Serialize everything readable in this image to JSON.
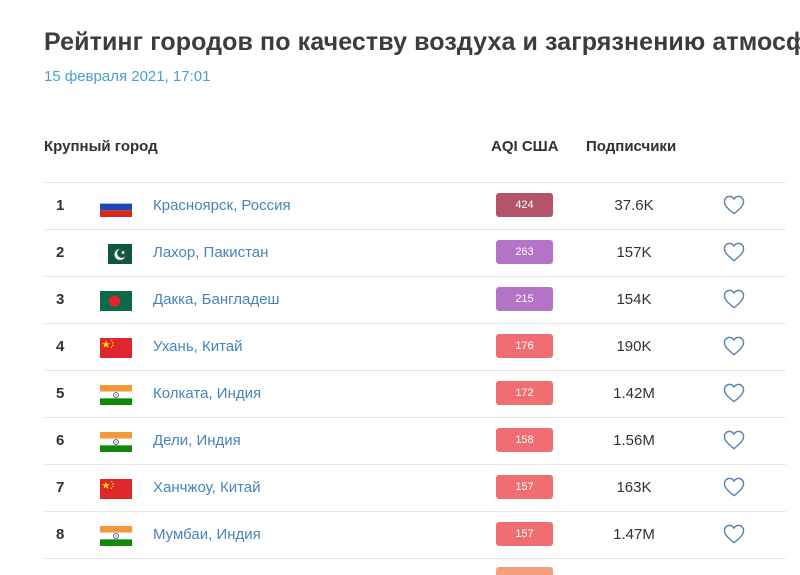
{
  "header": {
    "title": "Рейтинг городов по качеству воздуха и загрязнению атмосфе",
    "date": "15 февраля 2021, 17:01"
  },
  "table": {
    "columns": {
      "city": "Крупный город",
      "aqi": "AQI США",
      "subscribers": "Подписчики"
    },
    "rows": [
      {
        "rank": "1",
        "flag": "russia-flag-icon",
        "city": "Красноярск, Россия",
        "aqi": "424",
        "aqi_color": "#b3546a",
        "subscribers": "37.6K"
      },
      {
        "rank": "2",
        "flag": "pakistan-flag-icon",
        "city": "Лахор, Пакистан",
        "aqi": "263",
        "aqi_color": "#b573c8",
        "subscribers": "157K"
      },
      {
        "rank": "3",
        "flag": "bangladesh-flag-icon",
        "city": "Дакка, Бангладеш",
        "aqi": "215",
        "aqi_color": "#b573c8",
        "subscribers": "154K"
      },
      {
        "rank": "4",
        "flag": "china-flag-icon",
        "city": "Ухань, Китай",
        "aqi": "176",
        "aqi_color": "#f06d72",
        "subscribers": "190K"
      },
      {
        "rank": "5",
        "flag": "india-flag-icon",
        "city": "Колката, Индия",
        "aqi": "172",
        "aqi_color": "#f06d72",
        "subscribers": "1.42M"
      },
      {
        "rank": "6",
        "flag": "india-flag-icon",
        "city": "Дели, Индия",
        "aqi": "158",
        "aqi_color": "#f06d72",
        "subscribers": "1.56M"
      },
      {
        "rank": "7",
        "flag": "china-flag-icon",
        "city": "Ханчжоу, Китай",
        "aqi": "157",
        "aqi_color": "#f06d72",
        "subscribers": "163K"
      },
      {
        "rank": "8",
        "flag": "india-flag-icon",
        "city": "Мумбаи, Индия",
        "aqi": "157",
        "aqi_color": "#f06d72",
        "subscribers": "1.47M"
      }
    ],
    "heart_icon": "heart-outline-icon",
    "heart_color": "#5a86b0"
  }
}
